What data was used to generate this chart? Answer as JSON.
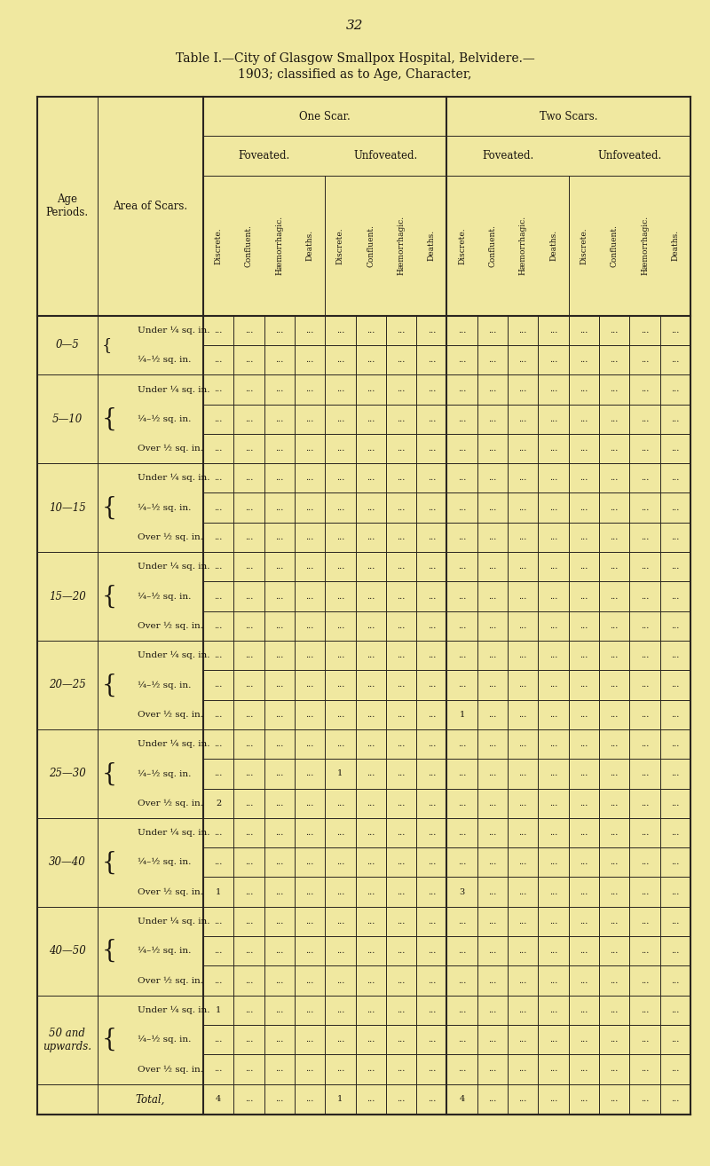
{
  "page_number": "32",
  "bg_color": "#f0e8a0",
  "title_line1": "Table I.—City of Glasgow Smallpox Hospital, Belvidere.—",
  "title_line2": "1903; classified as to Age, Character,",
  "age_periods": [
    "0—5",
    "5—10",
    "10—15",
    "15—20",
    "20—25",
    "25—30",
    "30—40",
    "40—50",
    "50 and\nupwards."
  ],
  "area_rows_per_age": [
    2,
    3,
    3,
    3,
    3,
    3,
    3,
    3,
    3
  ],
  "area_labels": [
    [
      "Under ¼ sq. in.",
      "¼–½ sq. in."
    ],
    [
      "Under ¼ sq. in.",
      "¼–½ sq. in.",
      "Over ½ sq. in."
    ],
    [
      "Under ¼ sq. in.",
      "¼–½ sq. in.",
      "Over ½ sq. in."
    ],
    [
      "Under ¼ sq. in.",
      "¼–½ sq. in.",
      "Over ½ sq. in."
    ],
    [
      "Under ¼ sq. in.",
      "¼–½ sq. in.",
      "Over ½ sq. in."
    ],
    [
      "Under ¼ sq. in.",
      "¼–½ sq. in.",
      "Over ½ sq. in."
    ],
    [
      "Under ¼ sq. in.",
      "¼–½ sq. in.",
      "Over ½ sq. in."
    ],
    [
      "Under ¼ sq. in.",
      "¼–½ sq. in.",
      "Over ½ sq. in."
    ],
    [
      "Under ¼ sq. in.",
      "¼–½ sq. in.",
      "Over ½ sq. in."
    ]
  ],
  "one_scar_label": "One Scar.",
  "two_scars_label": "Two Scars.",
  "foveated_label": "Foveated.",
  "unfoveated_label": "Unfoveated.",
  "leaf_labels": [
    "Discrete.",
    "Confluent.",
    "Hæmorrhagic.",
    "Deaths."
  ],
  "age_periods_label": "Age\nPeriods.",
  "area_scars_label": "Area of Scars.",
  "cell_data": {
    "4,2,8": "1",
    "5,1,4": "1",
    "5,2,0": "2",
    "6,2,0": "1",
    "6,2,8": "3",
    "8,0,0": "1"
  },
  "totals_row": [
    "4",
    "...",
    "...",
    "...",
    "1",
    "...",
    "...",
    "...",
    "4",
    "...",
    "...",
    "...",
    "...",
    "...",
    "...",
    "..."
  ],
  "total_label": "Total,",
  "dot": "..."
}
